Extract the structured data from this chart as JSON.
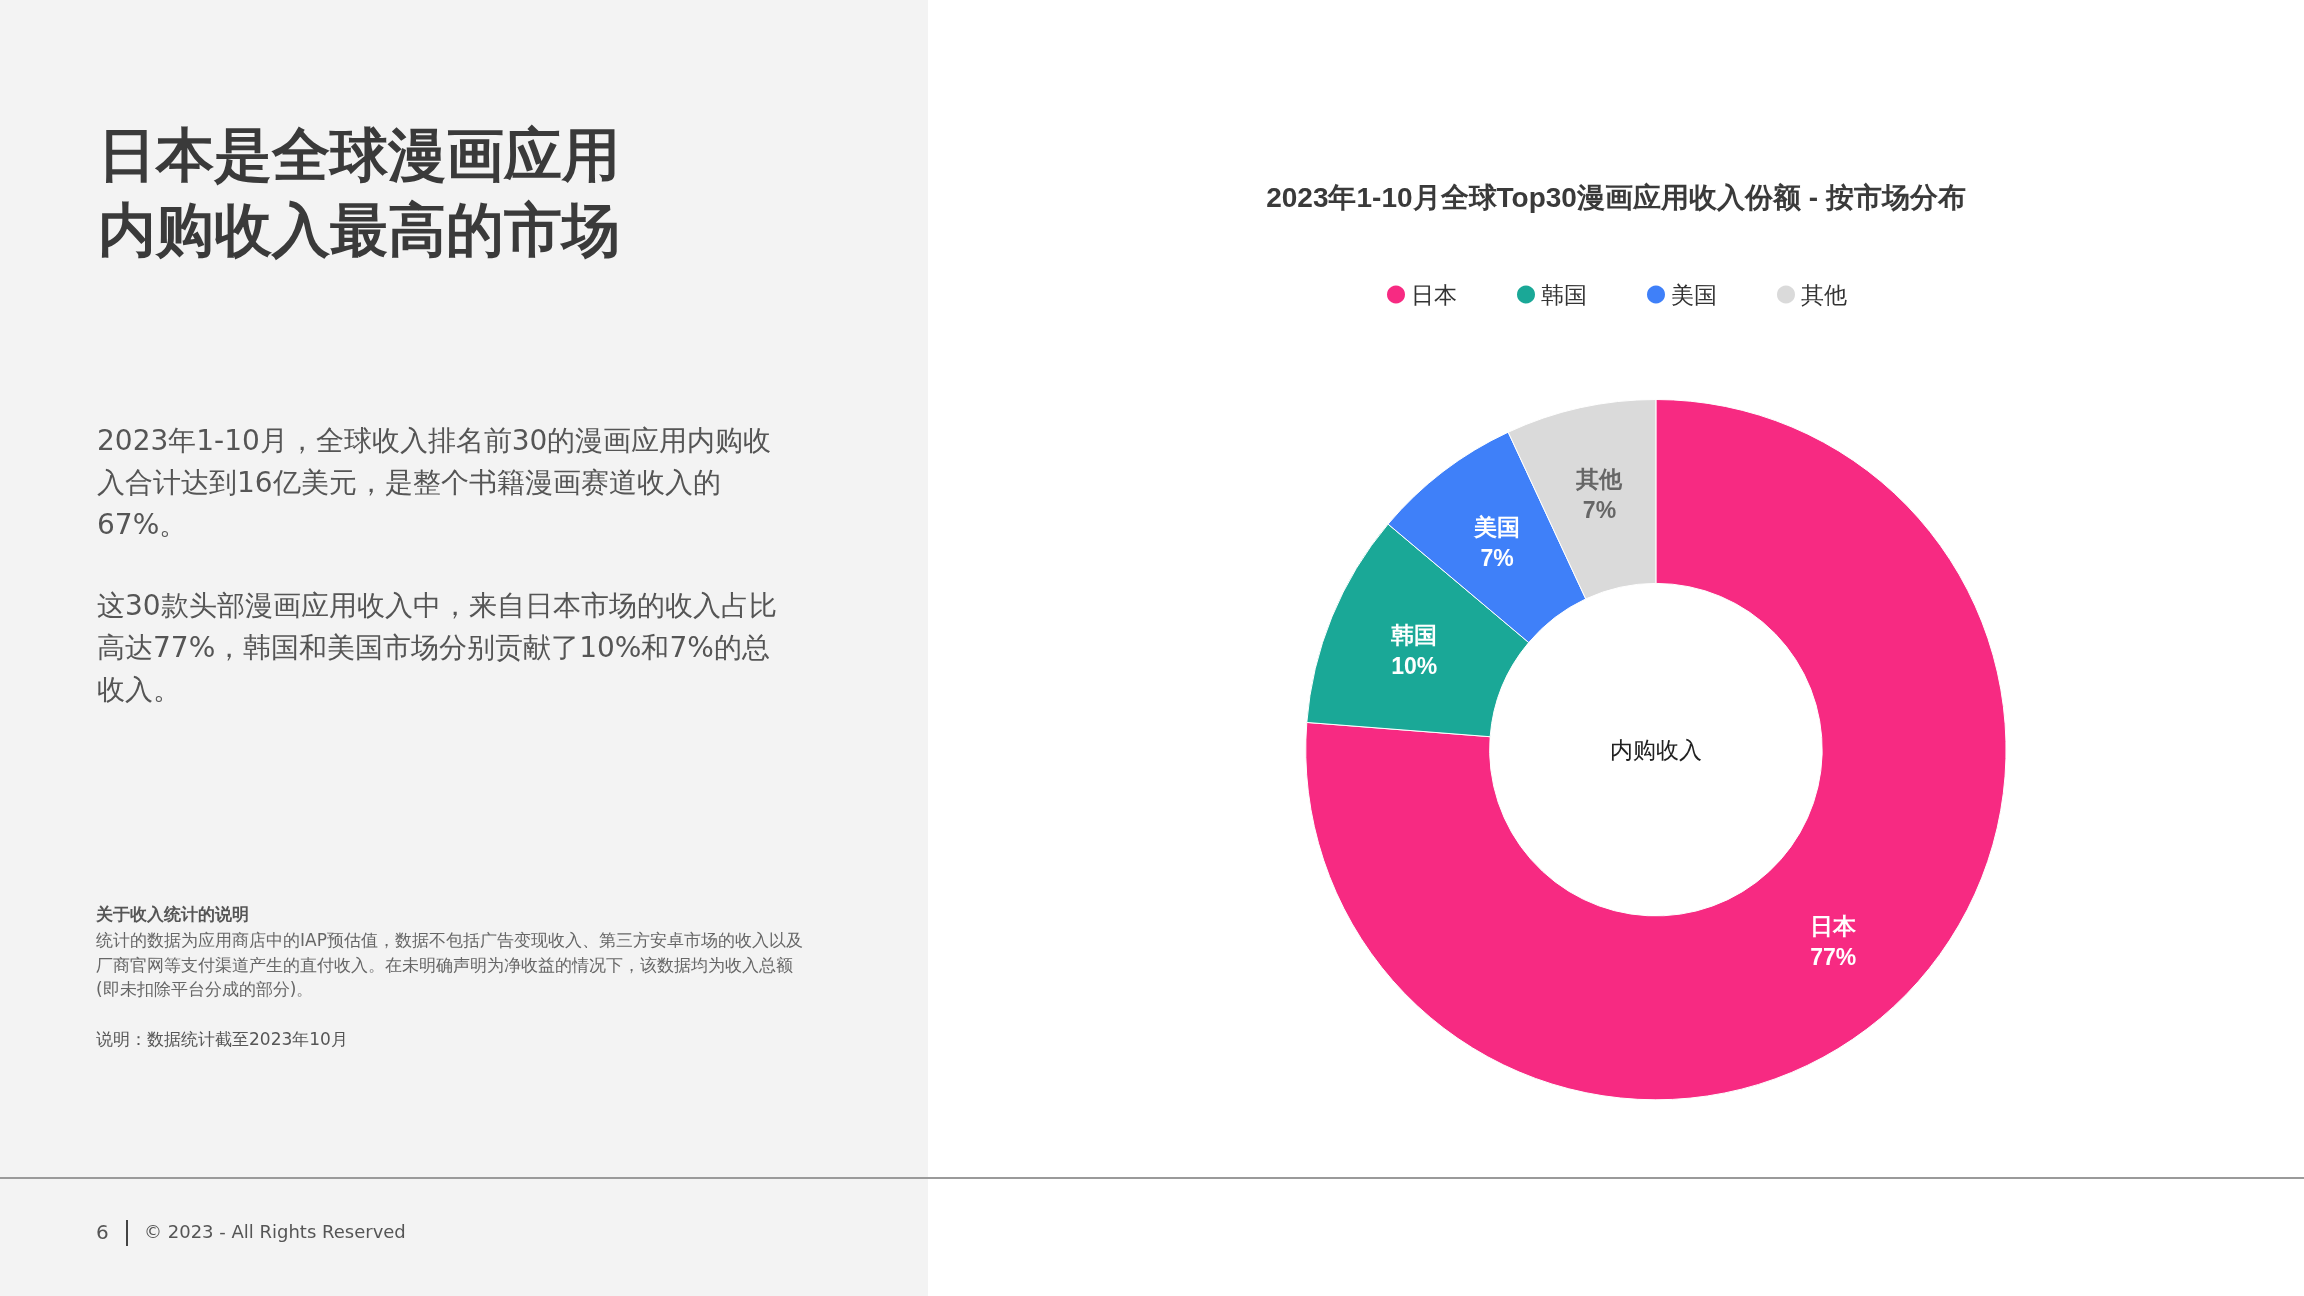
{
  "chart_data": {
    "type": "donut",
    "title": "2023年1-10月全球Top30漫画应用收入份额 - 按市场分布",
    "categories": [
      "日本",
      "韩国",
      "美国",
      "其他"
    ],
    "values": [
      77,
      10,
      7,
      7
    ],
    "value_labels": [
      "77%",
      "10%",
      "7%",
      "7%"
    ],
    "colors": [
      "#f72a82",
      "#1aa897",
      "#3f80f9",
      "#dadada"
    ],
    "legend": "top",
    "annotations": [
      "日本是全球漫画应用内购收入最高的市场",
      "2023年1-10月，全球收入排名前30的漫画应用内购收入合计达到16亿美元，是整个书籍漫画赛道收入的67%。",
      "这30款头部漫画应用收入中，来自日本市场的收入占比高达77%，韩国和美国市场分别贡献了10%和7%的总收入。",
      "关于收入统计的说明",
      "统计的数据为应用商店中的IAP预估值，数据不包括广告变现收入、第三方安卓市场的收入以及厂商官网等支付渠道产生的直付收入。在未明确声明为净收益的情况下，该数据均为收入总额(即未扣除平台分成的部分)。",
      "说明：数据统计截至2023年10月",
      "6",
      "© 2023 - All Rights Reserved",
      "内购收入"
    ]
  }
}
